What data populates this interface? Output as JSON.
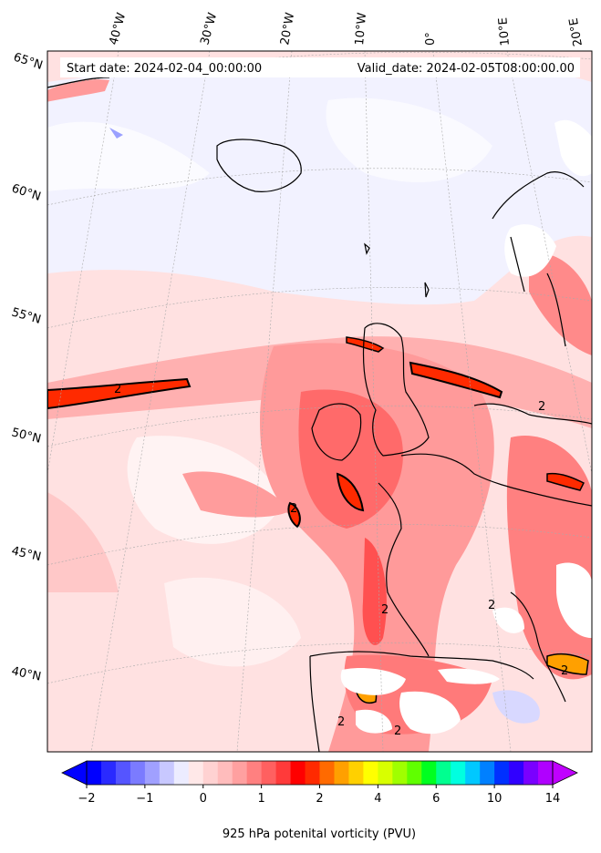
{
  "header": {
    "start_date": "Start date: 2024-02-04_00:00:00",
    "valid_date": "Valid_date: 2024-02-05T08:00:00.00"
  },
  "map": {
    "projection": "conic",
    "lon_labels": [
      "40°W",
      "30°W",
      "20°W",
      "10°W",
      "0°",
      "10°E",
      "20°E"
    ],
    "lat_labels": [
      "65°N",
      "60°N",
      "55°N",
      "50°N",
      "45°N",
      "40°N"
    ],
    "contour_label": "2",
    "colors": {
      "background_field": "#ffd8d8",
      "coast": "#000000",
      "grid": "#bbbbbb"
    }
  },
  "colorbar": {
    "title": "925 hPa potenital vorticity (PVU)",
    "tick_labels": [
      "−2",
      "−1",
      "0",
      "1",
      "2",
      "4",
      "6",
      "10",
      "14"
    ],
    "colors": [
      "#0000ff",
      "#2a2aff",
      "#5555ff",
      "#7b7bff",
      "#a0a0ff",
      "#c8c8ff",
      "#ececff",
      "#ffe8e8",
      "#ffd2d2",
      "#ffbcbc",
      "#ffa0a0",
      "#ff8080",
      "#ff6060",
      "#ff3a3a",
      "#ff0000",
      "#ff2a00",
      "#ff6a00",
      "#ffa000",
      "#ffd000",
      "#ffff00",
      "#d8ff00",
      "#a0ff00",
      "#60ff00",
      "#00ff20",
      "#00ff90",
      "#00ffe0",
      "#00c8ff",
      "#0080ff",
      "#0030ff",
      "#3000ff",
      "#7a00ff",
      "#b000ff"
    ]
  }
}
